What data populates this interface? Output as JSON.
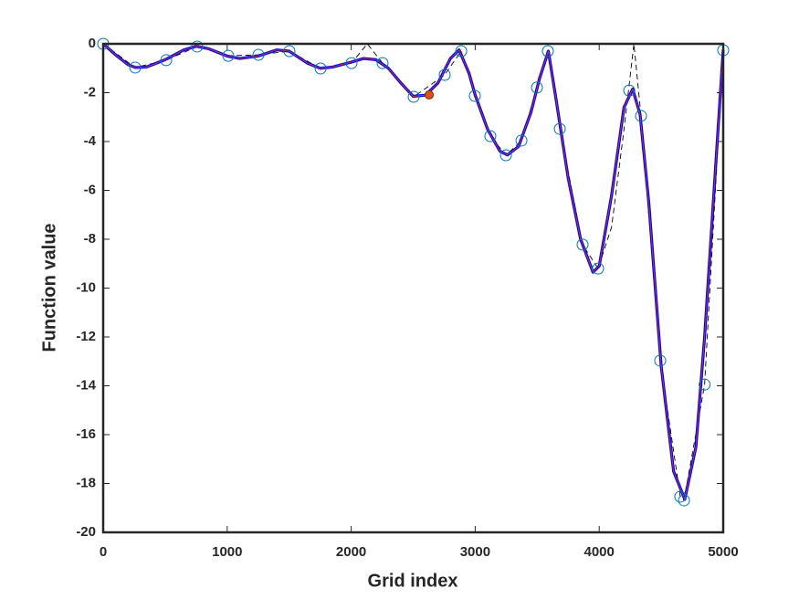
{
  "chart_data": {
    "type": "line",
    "xlabel": "Grid index",
    "ylabel": "Function value",
    "xlim": [
      0,
      5000
    ],
    "xticks": [
      0,
      1000,
      2000,
      3000,
      4000,
      5000
    ],
    "ylim": [
      -20,
      0
    ],
    "yticks": [
      -20,
      -18,
      -16,
      -14,
      -12,
      -10,
      -8,
      -6,
      -4,
      -2,
      0
    ],
    "series": [
      {
        "color": "#0000ff",
        "width": 3.2,
        "dash": false,
        "marker": "none",
        "x": [
          0,
          100,
          200,
          260,
          350,
          500,
          650,
          750,
          850,
          1000,
          1100,
          1250,
          1400,
          1500,
          1650,
          1750,
          1850,
          2000,
          2100,
          2200,
          2300,
          2400,
          2500,
          2600,
          2700,
          2800,
          2870,
          2950,
          3000,
          3100,
          3200,
          3260,
          3350,
          3450,
          3520,
          3590,
          3650,
          3750,
          3850,
          3950,
          4000,
          4100,
          4200,
          4270,
          4330,
          4400,
          4500,
          4600,
          4690,
          4780,
          4850,
          4920,
          5000
        ],
        "values": [
          0,
          -0.45,
          -0.85,
          -0.97,
          -0.95,
          -0.65,
          -0.25,
          -0.1,
          -0.2,
          -0.5,
          -0.6,
          -0.5,
          -0.25,
          -0.3,
          -0.8,
          -1.0,
          -0.95,
          -0.75,
          -0.6,
          -0.65,
          -1.0,
          -1.6,
          -2.15,
          -2.1,
          -1.6,
          -0.6,
          -0.25,
          -1.2,
          -2.1,
          -3.5,
          -4.4,
          -4.55,
          -4.2,
          -2.8,
          -1.4,
          -0.3,
          -2.2,
          -5.5,
          -8.0,
          -9.35,
          -9.1,
          -6.2,
          -2.6,
          -1.85,
          -2.9,
          -6.5,
          -13.2,
          -17.5,
          -18.65,
          -16.5,
          -12,
          -6.5,
          -0.25
        ]
      },
      {
        "color": "#c0392b",
        "width": 1,
        "dash": false,
        "marker": "none",
        "x": [
          0,
          100,
          200,
          260,
          350,
          500,
          650,
          750,
          850,
          1000,
          1100,
          1250,
          1400,
          1500,
          1650,
          1750,
          1850,
          2000,
          2100,
          2200,
          2300,
          2400,
          2500,
          2600,
          2700,
          2800,
          2870,
          2950,
          3000,
          3100,
          3200,
          3260,
          3350,
          3450,
          3520,
          3590,
          3650,
          3750,
          3850,
          3950,
          4000,
          4100,
          4200,
          4270,
          4330,
          4400,
          4500,
          4600,
          4690,
          4780,
          4850,
          4920,
          5000
        ],
        "values": [
          0,
          -0.45,
          -0.85,
          -0.97,
          -0.95,
          -0.65,
          -0.25,
          -0.1,
          -0.2,
          -0.5,
          -0.6,
          -0.5,
          -0.25,
          -0.3,
          -0.8,
          -1.0,
          -0.95,
          -0.75,
          -0.6,
          -0.65,
          -1.0,
          -1.6,
          -2.15,
          -2.1,
          -1.6,
          -0.6,
          -0.25,
          -1.2,
          -2.1,
          -3.5,
          -4.4,
          -4.55,
          -4.2,
          -2.8,
          -1.4,
          -0.3,
          -2.2,
          -5.5,
          -8.0,
          -9.35,
          -9.1,
          -6.2,
          -2.6,
          -1.85,
          -2.9,
          -6.5,
          -13.2,
          -17.5,
          -18.65,
          -16.5,
          -12,
          -6.5,
          -0.25
        ]
      },
      {
        "color": "#000000",
        "width": 0.9,
        "dash": true,
        "marker": "none",
        "x": [
          0,
          258,
          508,
          758,
          1009,
          1252,
          1502,
          1753,
          2003,
          2130,
          2253,
          2504,
          2754,
          2887,
          2997,
          3122,
          3248,
          3373,
          3498,
          3586,
          3682,
          3866,
          3991,
          4100,
          4200,
          4280,
          4337,
          4492,
          4654,
          4684,
          4850,
          5000
        ],
        "values": [
          0,
          -0.97,
          -0.67,
          -0.11,
          -0.49,
          -0.45,
          -0.3,
          -1.01,
          -0.79,
          0,
          -0.79,
          -2.17,
          -1.27,
          -0.3,
          -2.13,
          -3.78,
          -4.56,
          -3.96,
          -1.79,
          -0.3,
          -3.48,
          -8.22,
          -9.2,
          -7.5,
          -3.5,
          0,
          -2.95,
          -12.97,
          -18.54,
          -18.69,
          -13.95,
          -0.26
        ]
      },
      {
        "color": "#0072bd",
        "width": 1,
        "dash": false,
        "marker": "open",
        "x": [
          0,
          258,
          508,
          758,
          1009,
          1252,
          1502,
          1753,
          2003,
          2253,
          2504,
          2754,
          2887,
          2997,
          3122,
          3248,
          3373,
          3498,
          3586,
          3682,
          3866,
          3991,
          4242,
          4337,
          4492,
          4654,
          4684,
          4850,
          5000
        ],
        "values": [
          0,
          -0.97,
          -0.67,
          -0.11,
          -0.49,
          -0.45,
          -0.3,
          -1.01,
          -0.79,
          -0.79,
          -2.17,
          -1.27,
          -0.3,
          -2.13,
          -3.78,
          -4.56,
          -3.96,
          -1.79,
          -0.3,
          -3.48,
          -8.22,
          -9.2,
          -1.91,
          -2.95,
          -12.97,
          -18.54,
          -18.69,
          -13.95,
          -0.26
        ]
      },
      {
        "color": "#d95319",
        "width": 1,
        "dash": false,
        "marker": "filled",
        "x": [
          2629
        ],
        "values": [
          -2.09
        ]
      }
    ]
  }
}
